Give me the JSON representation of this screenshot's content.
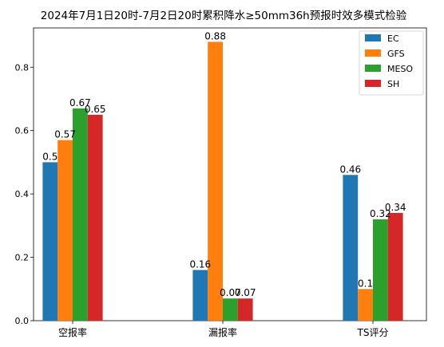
{
  "chart_data": {
    "type": "bar",
    "title": "2024年7月1日20时-7月2日20时累积降水≥50mm36h预报时效多模式检验",
    "xlabel": "",
    "ylabel": "",
    "categories": [
      "空报率",
      "漏报率",
      "TS评分"
    ],
    "series": [
      {
        "name": "EC",
        "values": [
          0.5,
          0.16,
          0.46
        ],
        "labels": [
          "0.5",
          "0.16",
          "0.46"
        ],
        "color": "#1f77b4"
      },
      {
        "name": "GFS",
        "values": [
          0.57,
          0.88,
          0.1
        ],
        "labels": [
          "0.57",
          "0.88",
          "0.1"
        ],
        "color": "#ff7f0e"
      },
      {
        "name": "MESO",
        "values": [
          0.67,
          0.07,
          0.32
        ],
        "labels": [
          "0.67",
          "0.07",
          "0.32"
        ],
        "color": "#2ca02c"
      },
      {
        "name": "SH",
        "values": [
          0.65,
          0.07,
          0.34
        ],
        "labels": [
          "0.65",
          "0.07",
          "0.34"
        ],
        "color": "#d62728"
      }
    ],
    "ylim": [
      0,
      0.924
    ],
    "yticks": [
      0.0,
      0.2,
      0.4,
      0.6,
      0.8
    ],
    "ytick_labels": [
      "0.0",
      "0.2",
      "0.4",
      "0.6",
      "0.8"
    ],
    "grid": false,
    "legend_position": "top-right"
  }
}
